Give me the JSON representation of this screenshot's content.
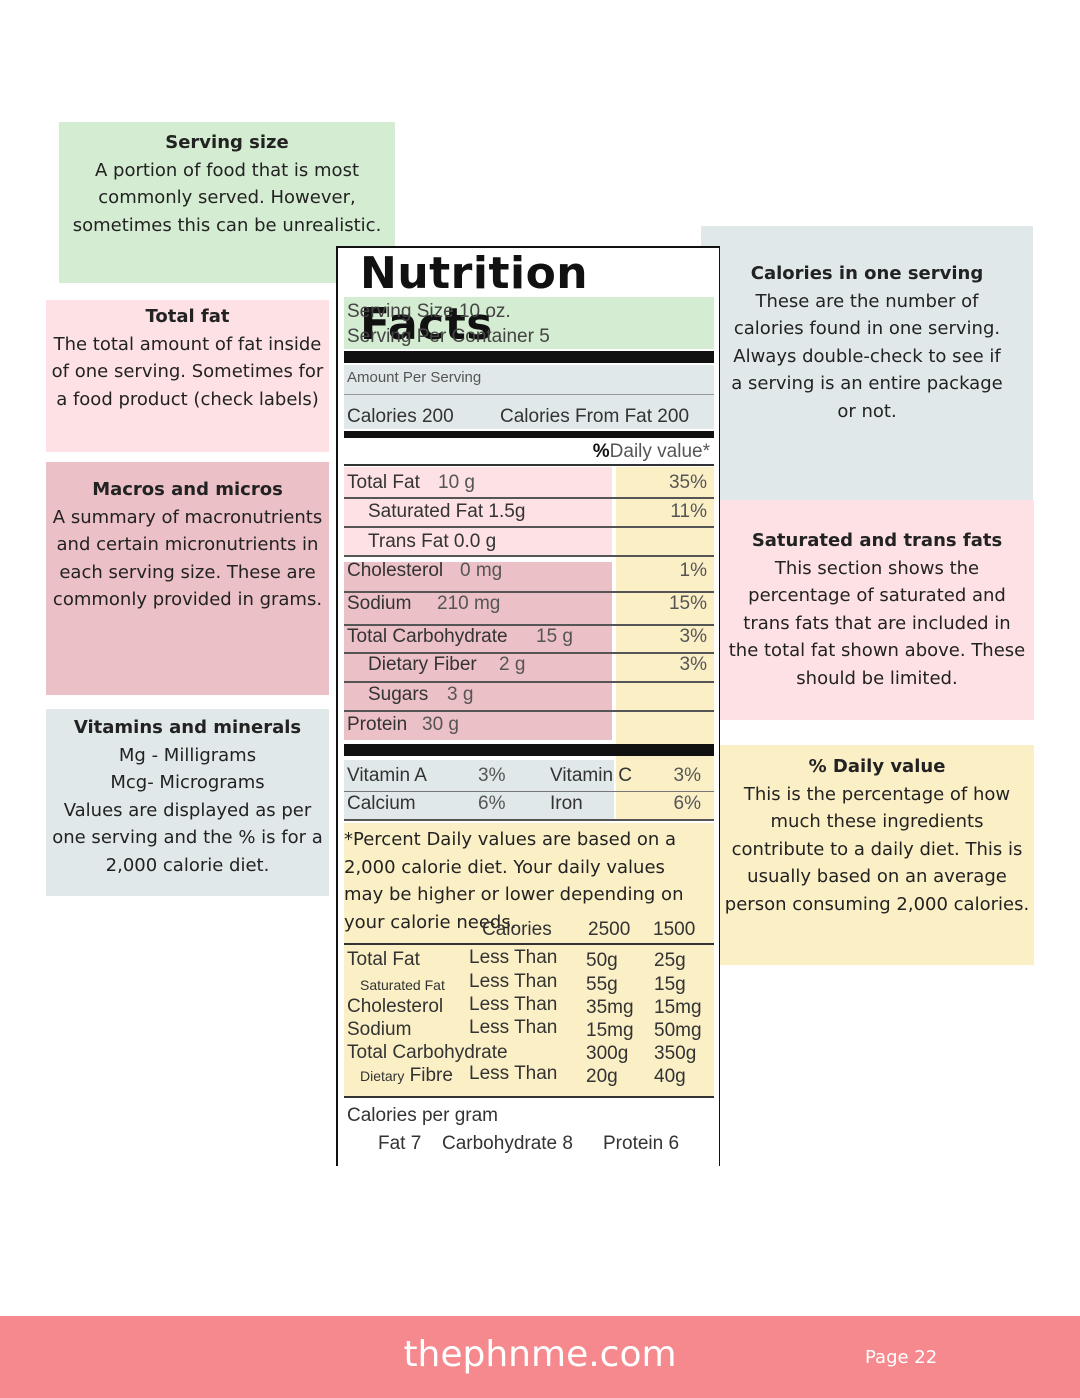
{
  "annotations": {
    "serving_size": {
      "title": "Serving size",
      "body": "A portion of food that is most commonly served. However, sometimes this can be unrealistic.",
      "color": "#d4ecd1"
    },
    "total_fat": {
      "title": "Total fat",
      "body": "The total amount of fat inside of one serving. Sometimes for a food product (check labels)",
      "color": "#fde1e4"
    },
    "macros": {
      "title": "Macros and micros",
      "body": "A summary of macronutrients and certain micronutrients in each serving size. These are commonly provided in grams.",
      "color": "#ebc0c6"
    },
    "vitamins": {
      "title": "Vitamins and minerals",
      "body": "Mg - Milligrams\nMcg- Micrograms\nValues are displayed as per one serving and the % is for a 2,000 calorie diet.",
      "color": "#e1e8ea"
    },
    "calories": {
      "title": "Calories in one serving",
      "body": "These are the number of calories found in one serving. Always double-check to see if a serving is an entire package or not.",
      "color": "#e1e8ea"
    },
    "sat_trans": {
      "title": "Saturated and trans fats",
      "body": "This section shows the percentage of saturated and trans fats that are included in the total fat shown above. These should be limited.",
      "color": "#fde1e4"
    },
    "daily_value": {
      "title": "% Daily value",
      "body": "This is the percentage of how much these ingredients contribute to a daily diet. This is usually based on an average person consuming 2,000 calories.",
      "color": "#fbefc6"
    }
  },
  "label": {
    "title": "Nutrition Facts",
    "serving_size": "Serving Size 10 oz.",
    "servings_per_container": "Serving Per Container 5",
    "amount_per_serving": "Amount Per Serving",
    "calories": "Calories 200",
    "calories_from_fat": "Calories From Fat 200",
    "dv_header_symbol": "%",
    "dv_header_text": "Daily value*",
    "nutrients": [
      {
        "name": "Total Fat",
        "amount": "10 g",
        "dv": "35%"
      },
      {
        "name": "Saturated Fat 1.5g",
        "amount": "",
        "dv": "11%"
      },
      {
        "name": "Trans Fat 0.0 g",
        "amount": "",
        "dv": ""
      },
      {
        "name": "Cholesterol",
        "amount": "0 mg",
        "dv": "1%"
      },
      {
        "name": "Sodium",
        "amount": "210 mg",
        "dv": "15%"
      },
      {
        "name": "Total Carbohydrate",
        "amount": "15 g",
        "dv": "3%"
      },
      {
        "name": "Dietary Fiber",
        "amount": "2 g",
        "dv": "3%"
      },
      {
        "name": "Sugars",
        "amount": "3 g",
        "dv": ""
      },
      {
        "name": "Protein",
        "amount": "30 g",
        "dv": ""
      }
    ],
    "vitamins": [
      {
        "name": "Vitamin A",
        "dv": "3%"
      },
      {
        "name": "Vitamin C",
        "dv": "3%"
      },
      {
        "name": "Calcium",
        "dv": "6%"
      },
      {
        "name": "Iron",
        "dv": "6%"
      }
    ],
    "footnote": "*Percent Daily values are based on a 2,000 calorie diet. Your daily values may be higher or lower depending on your calorie needs.",
    "ref_header": {
      "label": "Calories",
      "col1": "2500",
      "col2": "1500"
    },
    "ref_rows": [
      {
        "name": "Total Fat",
        "qual": "Less Than",
        "v1": "50g",
        "v2": "25g"
      },
      {
        "name": "Saturated Fat",
        "qual": "Less Than",
        "v1": "55g",
        "v2": "15g"
      },
      {
        "name": "Cholesterol",
        "qual": "Less Than",
        "v1": "35mg",
        "v2": "15mg"
      },
      {
        "name": "Sodium",
        "qual": "Less Than",
        "v1": "15mg",
        "v2": "50mg"
      },
      {
        "name": "Total Carbohydrate",
        "qual": "",
        "v1": "300g",
        "v2": "350g"
      },
      {
        "name_small": "Dietary",
        "name_big": "Fibre",
        "qual": "Less Than",
        "v1": "20g",
        "v2": "40g"
      }
    ],
    "cal_per_gram_title": "Calories per gram",
    "cal_per_gram": [
      {
        "label": "Fat 7"
      },
      {
        "label": "Carbohydrate 8"
      },
      {
        "label": "Protein 6"
      }
    ]
  },
  "footer": {
    "site": "thephnme.com",
    "page": "Page 22"
  }
}
